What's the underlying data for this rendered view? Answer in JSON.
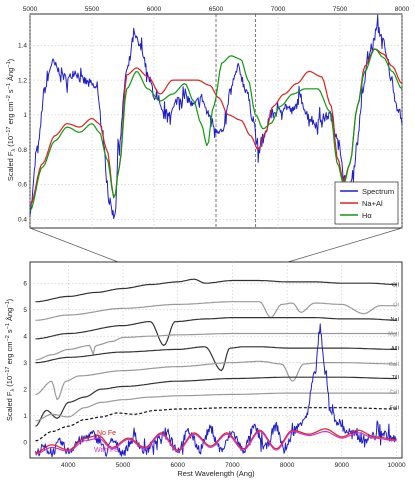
{
  "chart_data": [
    {
      "type": "line",
      "panel": "top",
      "xlabel": "",
      "ylabel": "Scaled Fλ (10⁻¹⁷ erg cm⁻² s⁻¹ Ång⁻¹)",
      "ylabel_parts": {
        "main": "Scaled F",
        "sub": "λ",
        "rest": " (10",
        "exp1": "−17",
        "mid1": " erg cm",
        "exp2": "−2",
        "mid2": " s",
        "exp3": "−1",
        "mid3": " Ång",
        "exp4": "−1",
        "end": ")"
      },
      "xlim": [
        5000,
        8000
      ],
      "ylim": [
        0.35,
        1.58
      ],
      "x_ticks": [
        5000,
        5500,
        6000,
        6500,
        7000,
        7500,
        8000
      ],
      "x_tick_labels": [
        "5000",
        "5500",
        "6000",
        "6500",
        "7000",
        "7500",
        "8000"
      ],
      "y_ticks": [
        0.4,
        0.6,
        0.8,
        1.0,
        1.2,
        1.4
      ],
      "y_tick_labels": [
        "0.4",
        "0.6",
        "0.8",
        "1",
        "1.2",
        "1.4"
      ],
      "grid": true,
      "legend_position": "bottom-right",
      "vlines_dashed": [
        6500,
        6820
      ],
      "series": [
        {
          "name": "Spectrum",
          "color": "#1f1fcc",
          "style": "noisy",
          "x": [
            5000,
            5060,
            5120,
            5180,
            5240,
            5300,
            5360,
            5420,
            5480,
            5540,
            5600,
            5640,
            5680,
            5720,
            5780,
            5840,
            5900,
            5960,
            6020,
            6080,
            6140,
            6200,
            6260,
            6320,
            6380,
            6440,
            6500,
            6560,
            6620,
            6680,
            6740,
            6800,
            6840,
            6880,
            6940,
            7000,
            7060,
            7120,
            7180,
            7240,
            7300,
            7360,
            7420,
            7480,
            7520,
            7560,
            7600,
            7640,
            7680,
            7720,
            7760,
            7800,
            7840,
            7880,
            7920,
            7960,
            8000
          ],
          "y": [
            0.45,
            0.8,
            1.15,
            1.3,
            1.25,
            1.2,
            1.25,
            1.2,
            1.18,
            1.15,
            0.8,
            0.5,
            0.42,
            0.85,
            1.25,
            1.45,
            1.38,
            1.2,
            1.08,
            1.0,
            1.02,
            1.1,
            1.1,
            1.05,
            1.1,
            1.0,
            0.92,
            0.9,
            1.15,
            1.27,
            1.15,
            0.98,
            0.78,
            0.85,
            1.0,
            1.02,
            1.05,
            1.02,
            1.1,
            1.0,
            0.95,
            0.98,
            1.0,
            0.88,
            0.7,
            0.57,
            0.62,
            0.85,
            1.1,
            1.3,
            1.4,
            1.5,
            1.45,
            1.32,
            1.18,
            1.05,
            0.98
          ]
        },
        {
          "name": "Na+Al",
          "color": "#dd2222",
          "style": "smooth",
          "x": [
            5000,
            5100,
            5200,
            5300,
            5400,
            5500,
            5560,
            5620,
            5680,
            5720,
            5780,
            5860,
            5950,
            6050,
            6150,
            6250,
            6350,
            6450,
            6520,
            6600,
            6700,
            6780,
            6840,
            6900,
            6960,
            7050,
            7150,
            7250,
            7350,
            7430,
            7480,
            7530,
            7580,
            7640,
            7700,
            7780,
            7850,
            7920,
            8000
          ],
          "y": [
            0.48,
            0.72,
            0.88,
            0.95,
            0.93,
            0.98,
            0.95,
            0.8,
            0.52,
            0.7,
            1.23,
            1.27,
            1.22,
            1.12,
            1.2,
            1.2,
            1.2,
            1.17,
            1.1,
            1.0,
            0.97,
            0.88,
            0.8,
            0.9,
            1.05,
            1.12,
            1.18,
            1.25,
            1.22,
            1.05,
            0.75,
            0.62,
            0.72,
            1.05,
            1.28,
            1.38,
            1.35,
            1.28,
            1.18
          ]
        },
        {
          "name": "Hα",
          "color": "#119911",
          "style": "smooth",
          "x": [
            5000,
            5100,
            5200,
            5300,
            5400,
            5500,
            5560,
            5620,
            5680,
            5720,
            5780,
            5860,
            5950,
            6050,
            6150,
            6250,
            6320,
            6380,
            6430,
            6480,
            6550,
            6620,
            6700,
            6760,
            6820,
            6880,
            6940,
            7020,
            7120,
            7220,
            7320,
            7420,
            7480,
            7530,
            7580,
            7640,
            7700,
            7780,
            7850,
            7920,
            8000
          ],
          "y": [
            0.45,
            0.7,
            0.85,
            0.93,
            0.9,
            0.95,
            0.9,
            0.75,
            0.52,
            0.7,
            1.15,
            1.25,
            1.15,
            1.08,
            1.12,
            1.18,
            1.08,
            0.95,
            0.82,
            1.05,
            1.3,
            1.34,
            1.32,
            1.2,
            1.0,
            0.92,
            0.95,
            1.05,
            1.12,
            1.15,
            1.15,
            1.02,
            0.72,
            0.6,
            0.72,
            1.05,
            1.25,
            1.38,
            1.33,
            1.25,
            1.15
          ]
        }
      ]
    },
    {
      "type": "line",
      "panel": "bottom",
      "xlabel": "Rest Wavelength (Ang)",
      "ylabel": "Scaled Fλ (10⁻¹⁷ erg cm⁻² s⁻¹ Ång⁻¹)",
      "ylabel_parts": {
        "main": "Scaled F",
        "sub": "λ",
        "rest": " (10",
        "exp1": "−17",
        "mid1": " erg cm",
        "exp2": "−2",
        "mid2": " s",
        "exp3": "−1",
        "mid3": " Ång",
        "exp4": "−1",
        "end": ")"
      },
      "xlim": [
        3300,
        10100
      ],
      "ylim": [
        -0.6,
        6.8
      ],
      "x_ticks": [
        4000,
        5000,
        6000,
        7000,
        8000,
        9000,
        10000
      ],
      "x_tick_labels": [
        "4000",
        "5000",
        "6000",
        "7000",
        "8000",
        "9000",
        "10000"
      ],
      "y_ticks": [
        0,
        1,
        2,
        3,
        4,
        5,
        6
      ],
      "y_tick_labels": [
        "0",
        "1",
        "2",
        "3",
        "4",
        "5",
        "6"
      ],
      "grid": true,
      "annotations": [
        {
          "text": "No Fe",
          "color": "#dd2222",
          "x": 4550,
          "y": 0.38
        },
        {
          "text": "With Fe",
          "color": "#cc33cc",
          "x": 4550,
          "y": -0.55
        }
      ],
      "series": [
        {
          "name": "CII",
          "color": "#333333",
          "label_y": 5.95,
          "x": [
            3400,
            4000,
            4500,
            5000,
            5500,
            6000,
            6300,
            6500,
            7000,
            7500,
            8000,
            8500,
            9000,
            9500,
            10000
          ],
          "y": [
            5.3,
            5.5,
            5.65,
            5.8,
            5.95,
            6.05,
            6.15,
            6.0,
            6.1,
            6.1,
            6.05,
            6.05,
            6.0,
            6.0,
            5.95
          ]
        },
        {
          "name": "OI",
          "color": "#999999",
          "label_y": 5.2,
          "x": [
            3400,
            4000,
            5000,
            6000,
            7000,
            7500,
            7700,
            7900,
            8100,
            8250,
            8500,
            9000,
            9400,
            9700,
            10000
          ],
          "y": [
            4.6,
            4.8,
            5.05,
            5.2,
            5.3,
            5.3,
            4.7,
            5.2,
            5.25,
            4.9,
            5.25,
            5.2,
            4.85,
            5.15,
            5.15
          ]
        },
        {
          "name": "NaI",
          "color": "#333333",
          "label_y": 4.65,
          "x": [
            3400,
            4000,
            5000,
            5500,
            5750,
            5950,
            6500,
            7000,
            7500,
            8000,
            8500,
            9000,
            9500,
            10000
          ],
          "y": [
            3.9,
            4.1,
            4.4,
            4.55,
            3.65,
            4.55,
            4.65,
            4.7,
            4.7,
            4.7,
            4.7,
            4.65,
            4.65,
            4.6
          ]
        },
        {
          "name": "MgII",
          "color": "#999999",
          "label_y": 4.1,
          "x": [
            3400,
            3700,
            4000,
            4400,
            4450,
            4500,
            4800,
            5000,
            5500,
            6000,
            7000,
            8000,
            9000,
            10000
          ],
          "y": [
            3.1,
            3.3,
            3.5,
            3.65,
            3.3,
            3.65,
            3.8,
            3.95,
            4.0,
            4.05,
            4.1,
            4.1,
            4.1,
            4.1
          ]
        },
        {
          "name": "AlII",
          "color": "#333333",
          "label_y": 3.55,
          "x": [
            3400,
            4000,
            5000,
            6000,
            6500,
            6800,
            6950,
            7200,
            7500,
            8000,
            9000,
            10000
          ],
          "y": [
            3.0,
            3.2,
            3.4,
            3.5,
            3.6,
            2.7,
            3.55,
            3.6,
            3.6,
            3.55,
            3.55,
            3.5
          ]
        },
        {
          "name": "CaII",
          "color": "#999999",
          "label_y": 2.95,
          "x": [
            3400,
            3700,
            3800,
            3950,
            4200,
            5000,
            6000,
            7000,
            7500,
            7900,
            8100,
            8300,
            8600,
            9000,
            10000
          ],
          "y": [
            1.8,
            2.3,
            1.6,
            2.3,
            2.5,
            2.7,
            2.85,
            3.0,
            3.05,
            2.95,
            2.3,
            2.95,
            3.0,
            3.0,
            2.95
          ]
        },
        {
          "name": "TiII",
          "color": "#333333",
          "label_y": 2.45,
          "x": [
            3400,
            3600,
            3800,
            4000,
            4300,
            4600,
            5000,
            6000,
            7000,
            8000,
            9000,
            10000
          ],
          "y": [
            0.6,
            1.2,
            0.9,
            1.5,
            1.7,
            2.0,
            2.1,
            2.3,
            2.4,
            2.45,
            2.45,
            2.4
          ]
        },
        {
          "name": "CrII",
          "color": "#999999",
          "label_y": 1.9,
          "x": [
            3400,
            3700,
            4000,
            4300,
            4600,
            5000,
            5500,
            6000,
            7000,
            8000,
            9000,
            10000
          ],
          "y": [
            0.8,
            1.05,
            0.95,
            1.3,
            1.5,
            1.6,
            1.7,
            1.75,
            1.8,
            1.85,
            1.85,
            1.85
          ]
        },
        {
          "name": "FeII",
          "color": "#111111",
          "dashed": true,
          "label_y": 1.3,
          "x": [
            3400,
            3700,
            4000,
            4300,
            4600,
            4900,
            5200,
            5600,
            6000,
            7000,
            8000,
            9000,
            10000
          ],
          "y": [
            0.05,
            0.4,
            0.6,
            0.85,
            0.95,
            1.1,
            1.05,
            1.2,
            1.25,
            1.3,
            1.3,
            1.3,
            1.25
          ]
        },
        {
          "name": "Spectrum",
          "color": "#1f1fcc",
          "noisy": true,
          "label_y": null,
          "x": [
            3400,
            3550,
            3700,
            3850,
            4000,
            4200,
            4450,
            4550,
            4700,
            4800,
            5000,
            5200,
            5400,
            5600,
            5800,
            6000,
            6200,
            6400,
            6600,
            6800,
            7000,
            7200,
            7400,
            7600,
            7800,
            7950,
            8150,
            8350,
            8500,
            8600,
            8700,
            8800,
            8900,
            9100,
            9400,
            9700,
            10000
          ],
          "y": [
            -0.45,
            -0.2,
            -0.4,
            0.0,
            -0.35,
            0.05,
            0.3,
            0.1,
            -0.4,
            0.05,
            -0.4,
            0.15,
            -0.35,
            0.0,
            0.45,
            -0.3,
            0.4,
            -0.25,
            0.5,
            -0.3,
            0.35,
            -0.3,
            0.55,
            -0.2,
            0.6,
            -0.3,
            0.5,
            1.0,
            2.5,
            4.2,
            2.6,
            1.2,
            0.8,
            0.4,
            0.1,
            0.35,
            0.1
          ]
        },
        {
          "name": "No Fe",
          "color": "#dd2222",
          "noisy": false,
          "label_y": null,
          "x": [
            3400,
            3700,
            4000,
            4300,
            4550,
            4800,
            5100,
            5400,
            5700,
            6000,
            6300,
            6600,
            6900,
            7200,
            7500,
            7800,
            8100,
            8400,
            8700,
            9000,
            9300,
            9600,
            10000
          ],
          "y": [
            -0.4,
            -0.1,
            -0.3,
            0.15,
            0.25,
            -0.2,
            0.15,
            -0.2,
            0.35,
            -0.3,
            0.35,
            -0.15,
            0.35,
            -0.25,
            0.45,
            -0.25,
            0.45,
            0.3,
            0.5,
            0.2,
            0.45,
            0.2,
            0.1
          ]
        },
        {
          "name": "With Fe",
          "color": "#cc33cc",
          "noisy": false,
          "label_y": null,
          "x": [
            3400,
            3700,
            4000,
            4300,
            4550,
            4800,
            5100,
            5400,
            5700,
            6000,
            6300,
            6600,
            6900,
            7200,
            7500,
            7800,
            8100,
            8400,
            8700,
            9000,
            9300,
            9600,
            10000
          ],
          "y": [
            -0.45,
            -0.2,
            -0.35,
            0.05,
            0.15,
            -0.25,
            0.1,
            -0.25,
            0.3,
            -0.35,
            0.3,
            -0.2,
            0.3,
            -0.3,
            0.4,
            -0.3,
            0.4,
            0.25,
            0.4,
            0.15,
            0.35,
            0.15,
            0.05
          ]
        }
      ]
    }
  ]
}
